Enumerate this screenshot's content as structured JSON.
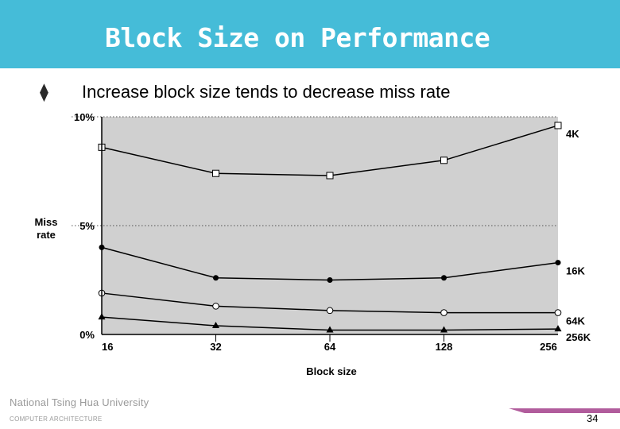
{
  "slide": {
    "title": "Block Size on Performance",
    "bullet_icon": "diamond-bullet-icon",
    "bullet_text": "Increase block size tends to decrease miss rate",
    "footer_university": "National  Tsing  Hua  University",
    "footer_department": "COMPUTER   ARCHITECTURE",
    "page_number": "34",
    "colors": {
      "title_bar": "#45bcd8",
      "plot_background": "#d0d0d0",
      "footer_bar": "#b15c9c"
    }
  },
  "chart_data": {
    "type": "line",
    "xlabel": "Block size",
    "ylabel_line1": "Miss",
    "ylabel_line2": "rate",
    "x_categories": [
      "16",
      "32",
      "64",
      "128",
      "256"
    ],
    "y_ticks": [
      {
        "label": "0%",
        "value": 0
      },
      {
        "label": "5%",
        "value": 5
      },
      {
        "label": "10%",
        "value": 10
      }
    ],
    "ylim": [
      0,
      10
    ],
    "grid": "dotted horizontal lines at 5% and 10%",
    "series": [
      {
        "name": "4K",
        "marker": "open-square",
        "values": [
          8.6,
          7.4,
          7.3,
          8.0,
          9.6
        ]
      },
      {
        "name": "16K",
        "marker": "filled-circle",
        "values": [
          4.0,
          2.6,
          2.5,
          2.6,
          3.3
        ]
      },
      {
        "name": "64K",
        "marker": "open-circle",
        "values": [
          1.9,
          1.3,
          1.1,
          1.0,
          1.0
        ]
      },
      {
        "name": "256K",
        "marker": "filled-triangle",
        "values": [
          0.8,
          0.4,
          0.2,
          0.2,
          0.25
        ]
      }
    ]
  }
}
